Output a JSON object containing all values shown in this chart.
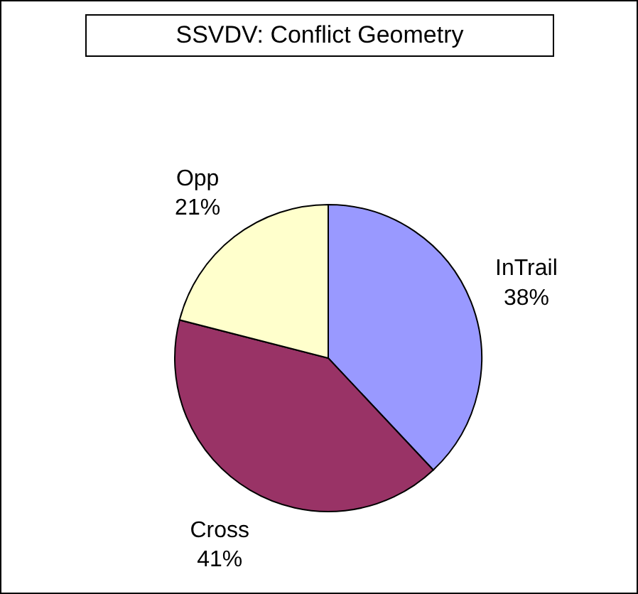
{
  "chart_data": {
    "type": "pie",
    "title": "SSVDV: Conflict Geometry",
    "categories": [
      "InTrail",
      "Cross",
      "Opp"
    ],
    "values": [
      38,
      41,
      21
    ],
    "colors": [
      "#9999ff",
      "#993366",
      "#ffffcc"
    ],
    "value_labels": [
      "38%",
      "41%",
      "21%"
    ],
    "legend": false
  }
}
